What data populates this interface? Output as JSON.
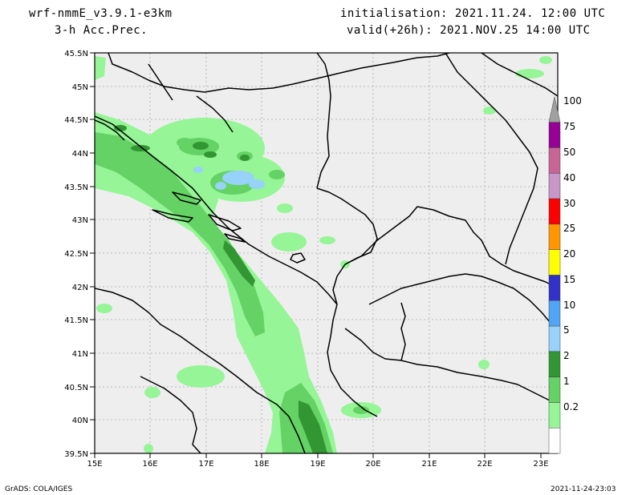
{
  "header": {
    "model": "wrf-nmmE_v3.9.1-e3km",
    "field": "3-h Acc.Prec.",
    "init": "initialisation: 2021.11.24.  12:00 UTC",
    "valid": "valid(+26h): 2021.NOV.25 14:00 UTC"
  },
  "footer": {
    "credit": "GrADS: COLA/IGES",
    "timestamp": "2021-11-24-23:03"
  },
  "map": {
    "lat_labels": [
      "45.5N",
      "45N",
      "44.5N",
      "44N",
      "43.5N",
      "43N",
      "42.5N",
      "42N",
      "41.5N",
      "41N",
      "40.5N",
      "40N",
      "39.5N"
    ],
    "lon_labels": [
      "15E",
      "16E",
      "17E",
      "18E",
      "19E",
      "20E",
      "21E",
      "22E",
      "23E"
    ]
  },
  "colorbar": {
    "levels": [
      "0.2",
      "1",
      "2",
      "5",
      "10",
      "15",
      "20",
      "25",
      "30",
      "40",
      "50",
      "75",
      "100"
    ],
    "colors": [
      "#ffffff",
      "#96f596",
      "#64d264",
      "#329632",
      "#96d2fa",
      "#50a5f5",
      "#3232c8",
      "#ffff00",
      "#ff9600",
      "#ff0000",
      "#c896c8",
      "#c86496",
      "#960096",
      "#a0a0a0"
    ]
  }
}
